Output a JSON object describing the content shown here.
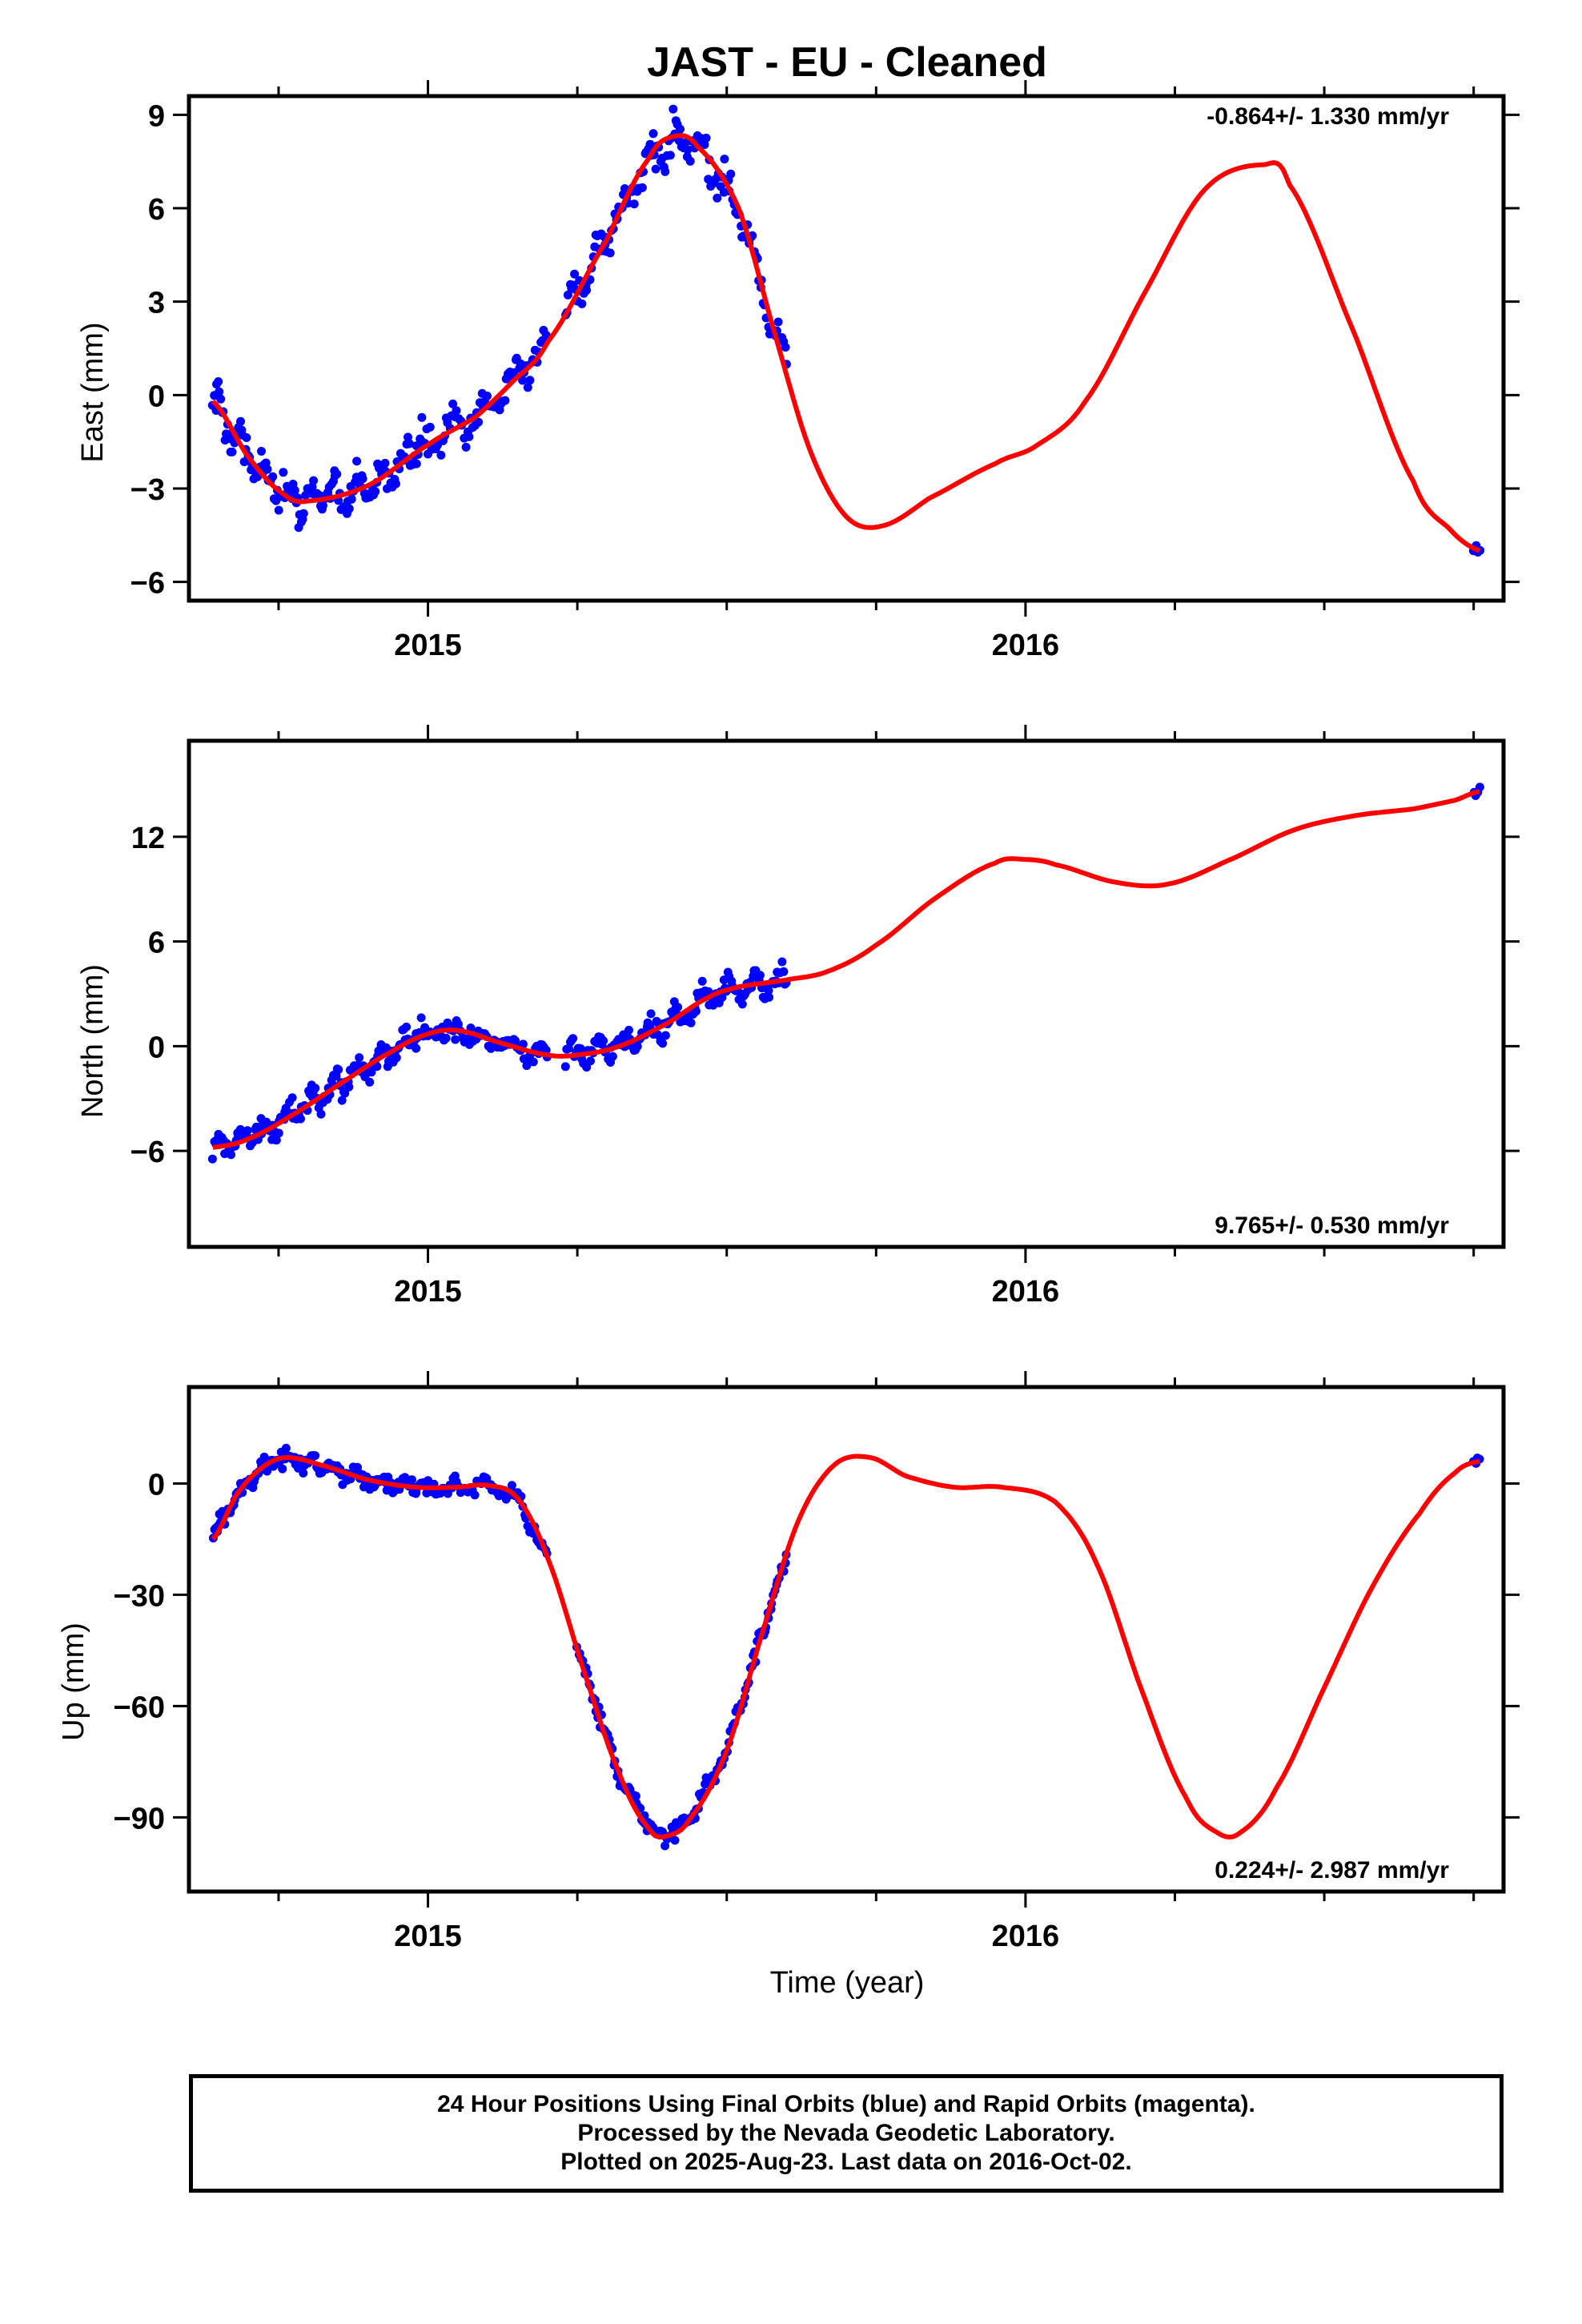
{
  "title": "JAST  - EU - Cleaned",
  "xlabel": "Time (year)",
  "footer": {
    "line1": "24 Hour Positions Using Final Orbits (blue) and Rapid Orbits (magenta).",
    "line2": "Processed by the Nevada Geodetic Laboratory.",
    "line3": "Plotted on 2025-Aug-23. Last data on 2016-Oct-02."
  },
  "colors": {
    "data": "#0000ff",
    "fit": "#ff0000",
    "frame": "#000000"
  },
  "chart_data": [
    {
      "type": "scatter",
      "name": "east",
      "ylabel": "East (mm)",
      "rate": "-0.864+/- 1.330 mm/yr",
      "rate_position": "top-right",
      "xlim": [
        2014.6,
        2016.8
      ],
      "ylim": [
        -6.6,
        9.6
      ],
      "yticks": [
        -6,
        -3,
        0,
        3,
        6,
        9
      ],
      "yticklabels": [
        "−6",
        "−3",
        "0",
        "3",
        "6",
        "9"
      ],
      "xticks": [
        2015,
        2016
      ],
      "xticklabels": [
        "2015",
        "2016"
      ],
      "xminorticks": [
        2014.75,
        2015.25,
        2015.5,
        2015.75,
        2016.25,
        2016.5,
        2016.75
      ],
      "data_segments": [
        {
          "x0": 2014.64,
          "x1": 2014.98,
          "n": 150,
          "amp": 1.1,
          "jitter": 0.8
        },
        {
          "x0": 2014.98,
          "x1": 2015.2,
          "n": 75,
          "amp": 1.0,
          "jitter": 0.7
        },
        {
          "x0": 2015.23,
          "x1": 2015.6,
          "n": 145,
          "amp": 1.0,
          "jitter": 0.8
        },
        {
          "x0": 2016.75,
          "x1": 2016.76,
          "n": 4,
          "amp": 0.2,
          "jitter": 0.3
        }
      ],
      "fit_curve": [
        [
          2014.64,
          -0.2
        ],
        [
          2014.7,
          -2.0
        ],
        [
          2014.76,
          -3.2
        ],
        [
          2014.8,
          -3.4
        ],
        [
          2014.9,
          -2.9
        ],
        [
          2015.0,
          -1.6
        ],
        [
          2015.08,
          -0.7
        ],
        [
          2015.14,
          0.4
        ],
        [
          2015.2,
          1.7
        ],
        [
          2015.3,
          5.0
        ],
        [
          2015.37,
          7.6
        ],
        [
          2015.41,
          8.3
        ],
        [
          2015.45,
          8.0
        ],
        [
          2015.52,
          6.0
        ],
        [
          2015.58,
          2.0
        ],
        [
          2015.64,
          -1.8
        ],
        [
          2015.7,
          -3.9
        ],
        [
          2015.76,
          -4.2
        ],
        [
          2015.84,
          -3.3
        ],
        [
          2015.95,
          -2.2
        ],
        [
          2016.02,
          -1.6
        ],
        [
          2016.1,
          -0.2
        ],
        [
          2016.2,
          3.3
        ],
        [
          2016.3,
          6.6
        ],
        [
          2016.4,
          7.4
        ],
        [
          2016.44,
          6.8
        ],
        [
          2016.55,
          2.0
        ],
        [
          2016.65,
          -2.8
        ],
        [
          2016.71,
          -4.3
        ],
        [
          2016.76,
          -5.0
        ]
      ]
    },
    {
      "type": "scatter",
      "name": "north",
      "ylabel": "North (mm)",
      "rate": "9.765+/- 0.530 mm/yr",
      "rate_position": "bottom-right",
      "xlim": [
        2014.6,
        2016.8
      ],
      "ylim": [
        -11.5,
        17.5
      ],
      "yticks": [
        -6,
        0,
        6,
        12
      ],
      "yticklabels": [
        "−6",
        "0",
        "6",
        "12"
      ],
      "xticks": [
        2015,
        2016
      ],
      "xticklabels": [
        "2015",
        "2016"
      ],
      "xminorticks": [
        2014.75,
        2015.25,
        2015.5,
        2015.75,
        2016.25,
        2016.5,
        2016.75
      ],
      "data_segments": [
        {
          "x0": 2014.64,
          "x1": 2014.98,
          "n": 150,
          "amp": 1.2,
          "jitter": 1.0
        },
        {
          "x0": 2014.98,
          "x1": 2015.2,
          "n": 75,
          "amp": 0.9,
          "jitter": 0.9
        },
        {
          "x0": 2015.23,
          "x1": 2015.6,
          "n": 145,
          "amp": 1.2,
          "jitter": 1.0
        },
        {
          "x0": 2016.75,
          "x1": 2016.76,
          "n": 4,
          "amp": 0.4,
          "jitter": 0.6
        }
      ],
      "fit_curve": [
        [
          2014.64,
          -5.8
        ],
        [
          2014.7,
          -5.3
        ],
        [
          2014.78,
          -3.8
        ],
        [
          2014.86,
          -2.0
        ],
        [
          2014.94,
          -0.3
        ],
        [
          2015.0,
          0.7
        ],
        [
          2015.05,
          0.9
        ],
        [
          2015.12,
          0.2
        ],
        [
          2015.2,
          -0.5
        ],
        [
          2015.25,
          -0.5
        ],
        [
          2015.32,
          0.0
        ],
        [
          2015.4,
          1.3
        ],
        [
          2015.47,
          2.8
        ],
        [
          2015.52,
          3.4
        ],
        [
          2015.6,
          3.8
        ],
        [
          2015.67,
          4.3
        ],
        [
          2015.75,
          5.8
        ],
        [
          2015.85,
          8.5
        ],
        [
          2015.95,
          10.5
        ],
        [
          2016.0,
          10.7
        ],
        [
          2016.05,
          10.4
        ],
        [
          2016.15,
          9.4
        ],
        [
          2016.24,
          9.3
        ],
        [
          2016.35,
          10.8
        ],
        [
          2016.45,
          12.4
        ],
        [
          2016.55,
          13.2
        ],
        [
          2016.65,
          13.6
        ],
        [
          2016.72,
          14.1
        ],
        [
          2016.76,
          14.6
        ]
      ]
    },
    {
      "type": "scatter",
      "name": "up",
      "ylabel": "Up (mm)",
      "rate": "0.224+/- 2.987 mm/yr",
      "rate_position": "bottom-right",
      "xlim": [
        2014.6,
        2016.8
      ],
      "ylim": [
        -110.0,
        26.0
      ],
      "yticks": [
        -90,
        -60,
        -30,
        0
      ],
      "yticklabels": [
        "−90",
        "−60",
        "−30",
        "0"
      ],
      "xticks": [
        2015,
        2016
      ],
      "xticklabels": [
        "2015",
        "2016"
      ],
      "xminorticks": [
        2014.75,
        2015.25,
        2015.5,
        2015.75,
        2016.25,
        2016.5,
        2016.75
      ],
      "data_segments": [
        {
          "x0": 2014.64,
          "x1": 2014.98,
          "n": 150,
          "amp": 3.0,
          "jitter": 3.0
        },
        {
          "x0": 2014.98,
          "x1": 2015.2,
          "n": 75,
          "amp": 3.0,
          "jitter": 3.2
        },
        {
          "x0": 2015.25,
          "x1": 2015.6,
          "n": 145,
          "amp": 3.0,
          "jitter": 3.2
        },
        {
          "x0": 2016.75,
          "x1": 2016.76,
          "n": 4,
          "amp": 2.0,
          "jitter": 4.0
        }
      ],
      "fit_curve": [
        [
          2014.64,
          -15.0
        ],
        [
          2014.68,
          -3.0
        ],
        [
          2014.72,
          4.0
        ],
        [
          2014.76,
          7.0
        ],
        [
          2014.82,
          5.0
        ],
        [
          2014.9,
          1.0
        ],
        [
          2014.98,
          -1.0
        ],
        [
          2015.05,
          -1.0
        ],
        [
          2015.1,
          -0.5
        ],
        [
          2015.15,
          -4.0
        ],
        [
          2015.2,
          -20.0
        ],
        [
          2015.26,
          -50.0
        ],
        [
          2015.32,
          -78.0
        ],
        [
          2015.37,
          -93.0
        ],
        [
          2015.4,
          -95.0
        ],
        [
          2015.44,
          -90.0
        ],
        [
          2015.5,
          -72.0
        ],
        [
          2015.56,
          -40.0
        ],
        [
          2015.62,
          -10.0
        ],
        [
          2015.68,
          5.0
        ],
        [
          2015.74,
          7.0
        ],
        [
          2015.8,
          2.0
        ],
        [
          2015.88,
          -1.0
        ],
        [
          2015.96,
          -1.0
        ],
        [
          2016.05,
          -5.0
        ],
        [
          2016.12,
          -22.0
        ],
        [
          2016.2,
          -58.0
        ],
        [
          2016.27,
          -85.0
        ],
        [
          2016.32,
          -94.0
        ],
        [
          2016.36,
          -94.0
        ],
        [
          2016.42,
          -82.0
        ],
        [
          2016.5,
          -55.0
        ],
        [
          2016.58,
          -28.0
        ],
        [
          2016.66,
          -8.0
        ],
        [
          2016.72,
          3.0
        ],
        [
          2016.76,
          6.0
        ]
      ]
    }
  ]
}
